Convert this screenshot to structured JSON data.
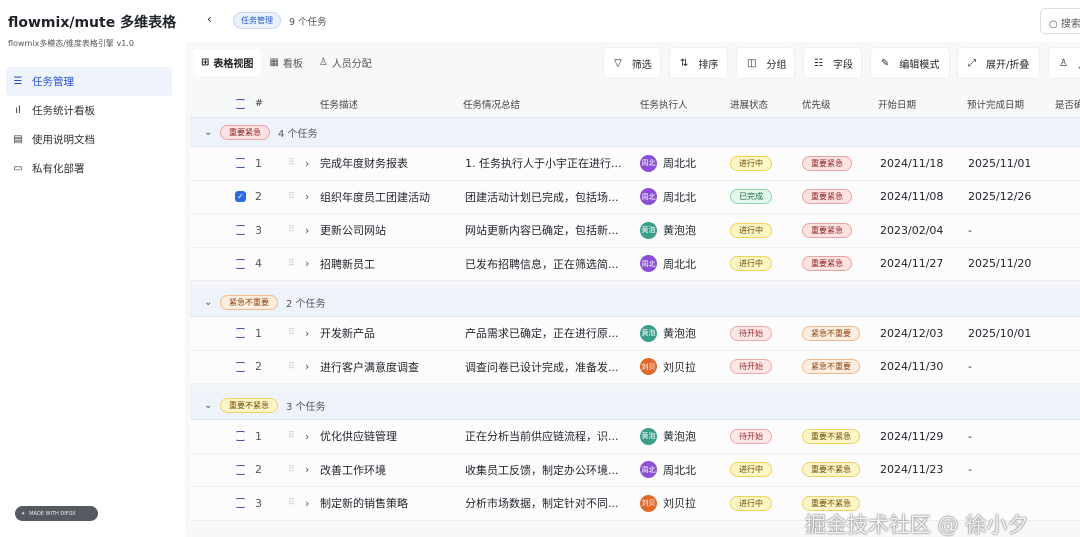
{
  "app": {
    "title": "flowmix/mute 多维表格",
    "subtitle": "flowmix多模态/维度表格引擎 v1.0",
    "made_with": "MADE WITH DIFOX"
  },
  "sidebar": {
    "items": [
      {
        "label": "任务管理",
        "icon": "database-icon",
        "active": true
      },
      {
        "label": "任务统计看板",
        "icon": "bar-chart-icon"
      },
      {
        "label": "使用说明文档",
        "icon": "document-icon"
      },
      {
        "label": "私有化部署",
        "icon": "server-icon"
      }
    ]
  },
  "topbar": {
    "breadcrumb": "任务管理",
    "count": "9 个任务",
    "search_placeholder": "搜索"
  },
  "views": [
    {
      "label": "表格视图",
      "icon": "table-icon",
      "active": true
    },
    {
      "label": "看板",
      "icon": "kanban-icon"
    },
    {
      "label": "人员分配",
      "icon": "user-icon"
    }
  ],
  "toolbar": [
    {
      "label": "筛选",
      "icon": "filter-icon"
    },
    {
      "label": "排序",
      "icon": "sort-icon"
    },
    {
      "label": "分组",
      "icon": "group-icon"
    },
    {
      "label": "字段",
      "icon": "fields-icon"
    },
    {
      "label": "编辑模式",
      "icon": "pencil-icon"
    },
    {
      "label": "展开/折叠",
      "icon": "expand-icon"
    },
    {
      "label": "人员",
      "icon": "user-icon"
    }
  ],
  "columns": [
    "#",
    "任务描述",
    "任务情况总结",
    "任务执行人",
    "进展状态",
    "优先级",
    "开始日期",
    "预计完成日期",
    "是否确"
  ],
  "colors": {
    "accent": "#2456c9",
    "person": {
      "周北北": "#8b4fd6",
      "黄泡泡": "#3a9e8a",
      "刘贝拉": "#e0692c"
    }
  },
  "groups": [
    {
      "label": "重要紧急",
      "count": "4 个任务",
      "rows": [
        {
          "n": "1",
          "checked": false,
          "title": "完成年度财务报表",
          "summary": "1. 任务执行人于小宇正在进行...",
          "person": "周北北",
          "avatar": "周北",
          "status": "进行中",
          "priority": "重要紧急",
          "start": "2024/11/18",
          "due": "2025/11/01"
        },
        {
          "n": "2",
          "checked": true,
          "title": "组织年度员工团建活动",
          "summary": "团建活动计划已完成，包括场...",
          "person": "周北北",
          "avatar": "周北",
          "status": "已完成",
          "priority": "重要紧急",
          "start": "2024/11/08",
          "due": "2025/12/26"
        },
        {
          "n": "3",
          "checked": false,
          "title": "更新公司网站",
          "summary": "网站更新内容已确定，包括新...",
          "person": "黄泡泡",
          "avatar": "黄泡",
          "status": "进行中",
          "priority": "重要紧急",
          "start": "2023/02/04",
          "due": "-"
        },
        {
          "n": "4",
          "checked": false,
          "title": "招聘新员工",
          "summary": "已发布招聘信息，正在筛选简...",
          "person": "周北北",
          "avatar": "周北",
          "status": "进行中",
          "priority": "重要紧急",
          "start": "2024/11/27",
          "due": "2025/11/20"
        }
      ]
    },
    {
      "label": "紧急不重要",
      "count": "2 个任务",
      "rows": [
        {
          "n": "1",
          "checked": false,
          "title": "开发新产品",
          "summary": "产品需求已确定，正在进行原...",
          "person": "黄泡泡",
          "avatar": "黄泡",
          "status": "待开始",
          "priority": "紧急不重要",
          "start": "2024/12/03",
          "due": "2025/10/01"
        },
        {
          "n": "2",
          "checked": false,
          "title": "进行客户满意度调查",
          "summary": "调查问卷已设计完成，准备发...",
          "person": "刘贝拉",
          "avatar": "刘贝",
          "status": "待开始",
          "priority": "紧急不重要",
          "start": "2024/11/30",
          "due": "-"
        }
      ]
    },
    {
      "label": "重要不紧急",
      "count": "3 个任务",
      "rows": [
        {
          "n": "1",
          "checked": false,
          "title": "优化供应链管理",
          "summary": "正在分析当前供应链流程，识...",
          "person": "黄泡泡",
          "avatar": "黄泡",
          "status": "待开始",
          "priority": "重要不紧急",
          "start": "2024/11/29",
          "due": "-"
        },
        {
          "n": "2",
          "checked": false,
          "title": "改善工作环境",
          "summary": "收集员工反馈，制定办公环境...",
          "person": "周北北",
          "avatar": "周北",
          "status": "进行中",
          "priority": "重要不紧急",
          "start": "2024/11/23",
          "due": "-"
        },
        {
          "n": "3",
          "checked": false,
          "title": "制定新的销售策略",
          "summary": "分析市场数据，制定针对不同...",
          "person": "刘贝拉",
          "avatar": "刘贝",
          "status": "进行中",
          "priority": "重要不紧急",
          "start": "",
          "due": ""
        }
      ]
    }
  ],
  "watermark": "掘金技术社区 @ 徐小夕"
}
